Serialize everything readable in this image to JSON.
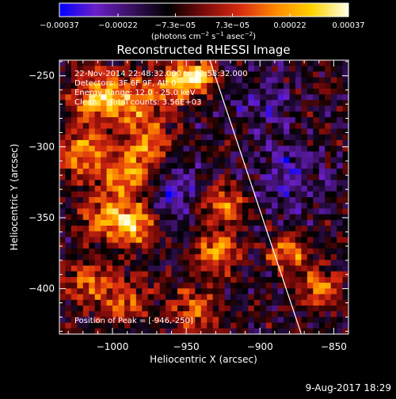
{
  "chart_data": {
    "type": "heatmap",
    "title": "Reconstructed RHESSI Image",
    "xlabel": "Heliocentric X (arcsec)",
    "ylabel": "Heliocentric Y (arcsec)",
    "xlim": [
      -1036,
      -840
    ],
    "ylim": [
      -432,
      -239
    ],
    "xticks": [
      -1000,
      -950,
      -900,
      -850
    ],
    "xtick_labels": [
      "−1000",
      "−950",
      "−900",
      "−850"
    ],
    "yticks": [
      -250,
      -300,
      -350,
      -400
    ],
    "ytick_labels": [
      "−250",
      "−300",
      "−350",
      "−400"
    ],
    "colorbar": {
      "ticks": [
        -0.00037,
        -0.00022,
        -7.3e-05,
        7.3e-05,
        0.00022,
        0.00037
      ],
      "tick_labels": [
        "−0.00037",
        "−0.00022",
        "−7.3e−05",
        "7.3e−05",
        "0.00022",
        "0.00037"
      ],
      "range": [
        -0.00037,
        0.00037
      ],
      "colors": [
        "#0000ff",
        "#6a1fc8",
        "#3a1060",
        "#000000",
        "#7a0a0a",
        "#d82a10",
        "#ff8a00",
        "#ffd200",
        "#ffffe8"
      ],
      "units_prefix": "(photons cm",
      "units_exp1": "−2",
      "units_mid": " s",
      "units_exp2": "−1",
      "units_mid2": " asec",
      "units_exp3": "−2",
      "units_suffix": ")"
    },
    "annotations": [
      "22-Nov-2014 22:48:32.000 to 22:58:32.000",
      "Detectors: 3F 6F 9F, Att 0",
      "Energy Range: 12.0 - 25.0 keV",
      "Clean     Total counts: 3.56E+03"
    ],
    "peak_label": "Position of Peak = [-946,-250]",
    "limb_line": [
      [
        -934,
        -239
      ],
      [
        -872,
        -432
      ]
    ],
    "grid_cols": 49,
    "grid_rows": 48,
    "blobs": [
      {
        "x": -1010,
        "y": -265,
        "a": 0.85,
        "s": 12
      },
      {
        "x": -985,
        "y": -272,
        "a": 0.65,
        "s": 14
      },
      {
        "x": -955,
        "y": -255,
        "a": 0.9,
        "s": 10
      },
      {
        "x": -940,
        "y": -250,
        "a": 1.0,
        "s": 7
      },
      {
        "x": -1020,
        "y": -305,
        "a": 0.75,
        "s": 12
      },
      {
        "x": -990,
        "y": -320,
        "a": 0.8,
        "s": 11
      },
      {
        "x": -975,
        "y": -300,
        "a": 0.65,
        "s": 10
      },
      {
        "x": -1005,
        "y": -350,
        "a": 0.7,
        "s": 12
      },
      {
        "x": -985,
        "y": -355,
        "a": 0.85,
        "s": 10
      },
      {
        "x": -1015,
        "y": -395,
        "a": 0.6,
        "s": 12
      },
      {
        "x": -990,
        "y": -410,
        "a": 0.55,
        "s": 11
      },
      {
        "x": -925,
        "y": -340,
        "a": 0.75,
        "s": 10
      },
      {
        "x": -930,
        "y": -375,
        "a": 0.7,
        "s": 11
      },
      {
        "x": -945,
        "y": -415,
        "a": 0.6,
        "s": 11
      },
      {
        "x": -880,
        "y": -375,
        "a": 0.65,
        "s": 10
      },
      {
        "x": -860,
        "y": -400,
        "a": 0.7,
        "s": 9
      },
      {
        "x": -955,
        "y": -330,
        "a": -0.45,
        "s": 14
      },
      {
        "x": -880,
        "y": -320,
        "a": -0.4,
        "s": 18
      },
      {
        "x": -900,
        "y": -270,
        "a": -0.3,
        "s": 16
      }
    ]
  },
  "footer": {
    "timestamp": "9-Aug-2017 18:29"
  }
}
